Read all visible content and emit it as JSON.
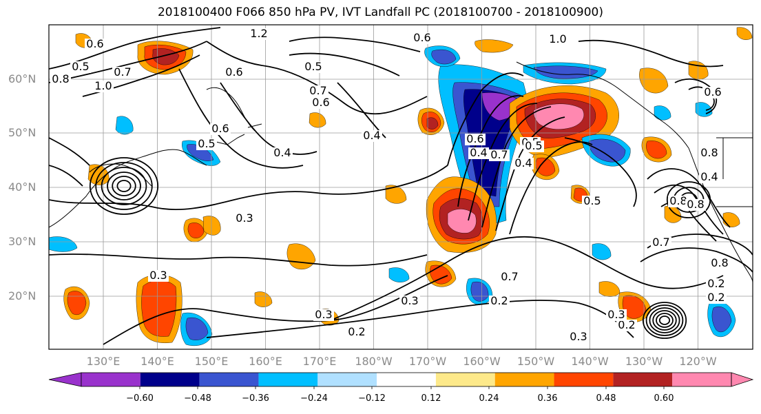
{
  "title": "2018100400 F066 850 hPa PV, IVT Landfall PC (2018100700 - 2018100900)",
  "lat_labels": [
    "60°N",
    "50°N",
    "40°N",
    "30°N",
    "20°N"
  ],
  "lon_labels": [
    "130°E",
    "140°E",
    "150°E",
    "160°E",
    "170°E",
    "180°W",
    "170°W",
    "160°W",
    "150°W",
    "140°W",
    "130°W",
    "120°W"
  ],
  "contour_labels": [
    "0.6",
    "0.5",
    "0.7",
    "0.8",
    "1.0",
    "1.2",
    "0.6",
    "0.7",
    "0.5",
    "0.6",
    "0.6",
    "0.4",
    "0.4",
    "0.5",
    "0.3",
    "0.3",
    "0.3",
    "0.2",
    "0.3",
    "0.6",
    "0.6",
    "0.7",
    "0.4",
    "0.5",
    "0.5",
    "0.6",
    "0.7",
    "0.8",
    "0.2",
    "0.2",
    "0.3",
    "0.2",
    "1.0",
    "0.8",
    "0.7",
    "0.8",
    "0.8",
    "0.4",
    "0.3",
    "0.2",
    "0.4",
    "0.5"
  ],
  "colorbar": {
    "ticks": [
      "−0.60",
      "−0.48",
      "−0.36",
      "−0.24",
      "−0.12",
      "0.12",
      "0.24",
      "0.36",
      "0.48",
      "0.60"
    ],
    "colors": [
      "#9932cc",
      "#00008b",
      "#3a55d0",
      "#00bfff",
      "#b0e0ff",
      "#ffffff",
      "#fde98a",
      "#ffa500",
      "#ff4500",
      "#b22222",
      "#ff88b0"
    ]
  },
  "shading_colors": {
    "neg_strong": "#9932cc",
    "neg_dark": "#00008b",
    "neg_mid": "#3a55d0",
    "neg_light": "#00bfff",
    "neg_pale": "#b0e0ff",
    "pos_pale": "#fde98a",
    "pos_light": "#ffa500",
    "pos_mid": "#ff4500",
    "pos_dark": "#b22222",
    "pos_strong": "#ff88b0"
  }
}
